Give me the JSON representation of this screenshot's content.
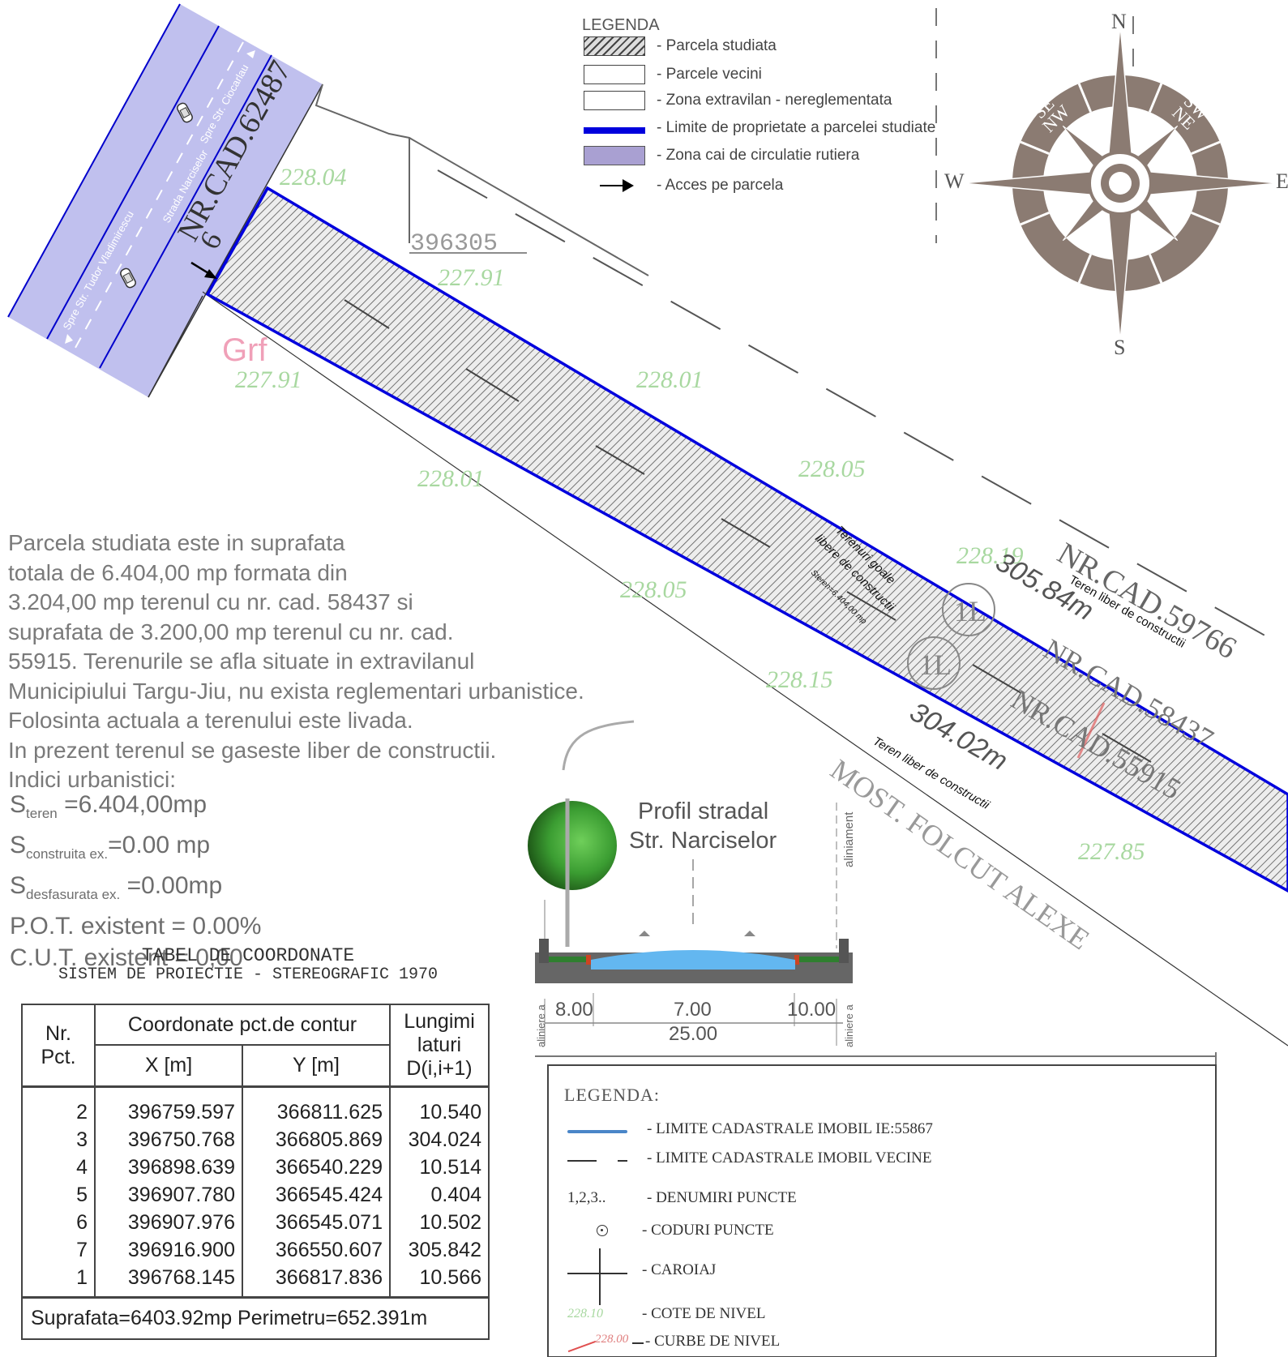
{
  "map": {
    "roads": {
      "tudor": "Spre Str. Tudor Vladimirescu",
      "narciselor": "Strada Narciselor",
      "ciocarlau": "Spre Str. Ciocarlau"
    },
    "labels": {
      "nr_cad_62487": "NR.CAD.62487",
      "parcel_396305": "396305",
      "nr_cad_59766": "NR.CAD.59766",
      "teren_liber_1": "Teren liber de constructii",
      "teren_liber_2": "Teren liber de constructii",
      "terenuri_goale_1": "Terenuri goale",
      "terenuri_goale_2": "libere de constructii",
      "s_teren_small": "Steren=6.404,00 mp",
      "len_top": "305.84m",
      "len_bottom": "304.02m",
      "nr_cad_58437": "NR.CAD.58437",
      "nr_cad_55915": "NR.CAD.55915",
      "most_folcut": "MOST. FOLCUT ALEXE",
      "grf": "Grf",
      "circle_1L": "1L",
      "point_6": "6",
      "point_1": "1"
    },
    "elevations": [
      "228.04",
      "227.91",
      "227.91",
      "228.01",
      "228.01",
      "228.05",
      "228.05",
      "228.19",
      "228.15",
      "227.85"
    ]
  },
  "compass": {
    "n": "N",
    "s": "S",
    "e": "E",
    "w": "W",
    "ne": "NE",
    "nw": "NW",
    "se": "SE",
    "sw": "SW"
  },
  "legend1": {
    "title": "LEGENDA",
    "items": [
      "- Parcela studiata",
      "- Parcele vecini",
      "- Zona extravilan - nereglementata",
      "- Limite de proprietate a parcelei studiate",
      "- Zona cai de circulatie rutiera",
      "- Acces pe parcela"
    ]
  },
  "description": {
    "lines": [
      "Parcela studiata este in suprafata",
      "totala de 6.404,00 mp formata din",
      "3.204,00 mp terenul cu nr. cad. 58437 si",
      "suprafata de 3.200,00 mp terenul cu nr. cad.",
      "55915. Terenurile se afla situate in extravilanul",
      "Municipiului Targu-Jiu, nu exista reglementari urbanistice.",
      "Folosinta actuala a terenului este livada.",
      "In prezent terenul se gaseste liber de constructii.",
      "Indici urbanistici:"
    ],
    "indici": {
      "s_teren_sym": "S",
      "s_teren_sub": "teren",
      "s_teren_val": " =6.404,00mp",
      "s_constr_sym": "S",
      "s_constr_sub": "construita ex.",
      "s_constr_val": "=0.00 mp",
      "s_desf_sym": "S",
      "s_desf_sub": "desfasurata ex.",
      "s_desf_val": " =0.00mp",
      "pot": "P.O.T. existent = 0.00%",
      "cut": "C.U.T. existent = 0,00"
    }
  },
  "profile": {
    "title_1": "Profil stradal",
    "title_2": "Str. Narciselor",
    "aliniament": "aliniament",
    "aliniere_left": "aliniere a",
    "aliniere_right": "aliniere a",
    "dims": [
      "8.00",
      "7.00",
      "10.00"
    ],
    "total": "25.00"
  },
  "table": {
    "title_1": "TABEL DE COORDONATE",
    "title_2": "SISTEM DE PROIECTIE - STEREOGRAFIC 1970",
    "headers": {
      "nr": "Nr.",
      "pct": "Pct.",
      "coord": "Coordonate pct.de contur",
      "x": "X [m]",
      "y": "Y [m]",
      "lung_1": "Lungimi",
      "lung_2": "laturi",
      "lung_3": "D(i,i+1)"
    },
    "rows": [
      {
        "pct": "2",
        "x": "396759.597",
        "y": "366811.625",
        "d": "10.540"
      },
      {
        "pct": "3",
        "x": "396750.768",
        "y": "366805.869",
        "d": "304.024"
      },
      {
        "pct": "4",
        "x": "396898.639",
        "y": "366540.229",
        "d": "10.514"
      },
      {
        "pct": "5",
        "x": "396907.780",
        "y": "366545.424",
        "d": "0.404"
      },
      {
        "pct": "6",
        "x": "396907.976",
        "y": "366545.071",
        "d": "10.502"
      },
      {
        "pct": "7",
        "x": "396916.900",
        "y": "366550.607",
        "d": "305.842"
      },
      {
        "pct": "1",
        "x": "396768.145",
        "y": "366817.836",
        "d": "10.566"
      }
    ],
    "footer": "Suprafata=6403.92mp Perimetru=652.391m"
  },
  "legend2": {
    "title": "LEGENDA:",
    "items": [
      "- LIMITE CADASTRALE IMOBIL IE:55867",
      "- LIMITE CADASTRALE IMOBIL VECINE",
      "- DENUMIRI PUNCTE",
      "- CODURI PUNCTE",
      "- CAROIAJ",
      "- COTE DE NIVEL",
      "- CURBE DE NIVEL"
    ],
    "points_sym": "1,2,3..",
    "cote_sym": "228.10",
    "curbe_sym": "228.00"
  },
  "colors": {
    "road_fill": "#b9b9ec",
    "boundary": "#0000dd",
    "elevation": "#a8d8a0",
    "hatch": "#555555"
  }
}
